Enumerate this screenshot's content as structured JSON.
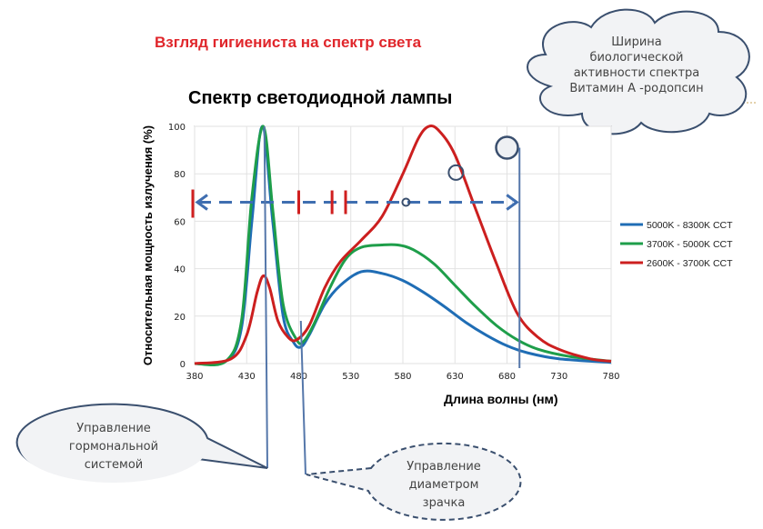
{
  "header": {
    "title": "Взгляд гигиениста на спектр света",
    "title_color": "#e0262b"
  },
  "cloud": {
    "lines": [
      "Ширина",
      "биологической",
      "активности спектра",
      "Витамин А -родопсин"
    ]
  },
  "callouts": {
    "hormonal": [
      "Управление",
      "гормональной",
      "системой"
    ],
    "pupil": [
      "Управление",
      "диаметром",
      "зрачка"
    ]
  },
  "chart_data": {
    "type": "line",
    "title": "Спектр светодиодной лампы",
    "xlabel": "Длина  волны (нм)",
    "ylabel": "Относительная мощность излучения (%)",
    "xlim": [
      380,
      780
    ],
    "ylim": [
      0,
      100
    ],
    "xticks": [
      380,
      430,
      480,
      530,
      580,
      630,
      680,
      730,
      780
    ],
    "yticks": [
      0,
      20,
      40,
      60,
      80,
      100
    ],
    "grid": true,
    "legend_position": "right",
    "series": [
      {
        "name": "5000K - 8300K CCT",
        "color": "#1f6db5",
        "x": [
          380,
          410,
          425,
          435,
          445,
          455,
          465,
          475,
          482,
          490,
          505,
          520,
          540,
          560,
          580,
          600,
          620,
          640,
          660,
          680,
          700,
          730,
          780
        ],
        "y": [
          0,
          1,
          15,
          60,
          100,
          60,
          20,
          9,
          7,
          12,
          25,
          33,
          38.7,
          38,
          35,
          30,
          24,
          17.5,
          12,
          7.5,
          4.5,
          2,
          0.5
        ]
      },
      {
        "name": "3700K - 5000K CCT",
        "color": "#1e9e4a",
        "x": [
          380,
          410,
          425,
          435,
          446,
          455,
          465,
          478,
          485,
          495,
          510,
          525,
          540,
          560,
          575,
          590,
          610,
          630,
          650,
          670,
          690,
          710,
          740,
          780
        ],
        "y": [
          0,
          1,
          18,
          70,
          100,
          65,
          25,
          10,
          9.5,
          17,
          32,
          44,
          49,
          50,
          50,
          48,
          42,
          33,
          24,
          16,
          10,
          6,
          3,
          1
        ]
      },
      {
        "name": "2600K - 3700K CCT",
        "color": "#cc1f1f",
        "x": [
          380,
          415,
          430,
          440,
          446,
          452,
          460,
          470,
          478,
          490,
          505,
          520,
          540,
          560,
          580,
          595,
          605,
          615,
          630,
          650,
          670,
          690,
          710,
          730,
          760,
          780
        ],
        "y": [
          0,
          2,
          12,
          30,
          37,
          32,
          18,
          11,
          10,
          16,
          32,
          43,
          52,
          62,
          80,
          95,
          100,
          98,
          88,
          65,
          42,
          21,
          11,
          6,
          2,
          1
        ]
      }
    ],
    "annotations": {
      "arrow_range_nm": [
        380,
        692
      ],
      "arrow_level": 68,
      "red_marks_nm": [
        380,
        480,
        512,
        525
      ],
      "vertical_lines_nm": [
        447,
        482,
        692
      ]
    }
  }
}
